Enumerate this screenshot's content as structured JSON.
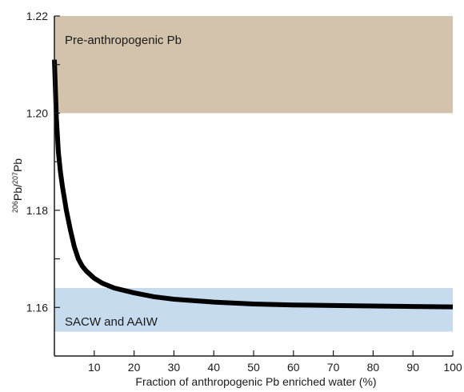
{
  "chart_data": {
    "type": "line",
    "xlabel": "Fraction of anthropogenic Pb enriched water (%)",
    "ylabel": {
      "iso1": "206",
      "el1": "Pb/",
      "iso2": "207",
      "el2": "Pb"
    },
    "xlim": [
      0,
      100
    ],
    "ylim": [
      1.15,
      1.22
    ],
    "x_ticks": [
      10,
      20,
      30,
      40,
      50,
      60,
      70,
      80,
      90,
      100
    ],
    "x_tick_labels": [
      "10",
      "20",
      "30",
      "40",
      "50",
      "60",
      "70",
      "80",
      "90",
      "100"
    ],
    "y_ticks": [
      1.16,
      1.17,
      1.18,
      1.19,
      1.2,
      1.21,
      1.22
    ],
    "y_tick_labels": [
      {
        "value": 1.16,
        "label": "1.16"
      },
      {
        "value": 1.18,
        "label": "1.18"
      },
      {
        "value": 1.2,
        "label": "1.20"
      },
      {
        "value": 1.22,
        "label": "1.22"
      }
    ],
    "grid": false,
    "bands": [
      {
        "label": "Pre-anthropogenic Pb",
        "y_range": [
          1.2,
          1.22
        ],
        "color": "#d3c3ad"
      },
      {
        "label": "SACW and AAIW",
        "y_range": [
          1.155,
          1.164
        ],
        "color": "#c6dbee"
      }
    ],
    "series": [
      {
        "color": "#000000",
        "x": [
          0,
          0.5,
          1,
          1.5,
          2,
          3,
          4,
          5,
          6,
          7,
          8,
          10,
          12,
          15,
          20,
          25,
          30,
          40,
          50,
          60,
          70,
          80,
          90,
          100
        ],
        "y": [
          1.211,
          1.199,
          1.192,
          1.188,
          1.185,
          1.18,
          1.176,
          1.1725,
          1.17,
          1.1685,
          1.1675,
          1.166,
          1.165,
          1.164,
          1.163,
          1.1622,
          1.1617,
          1.1611,
          1.1607,
          1.1605,
          1.1604,
          1.1603,
          1.1602,
          1.1601
        ]
      }
    ]
  }
}
